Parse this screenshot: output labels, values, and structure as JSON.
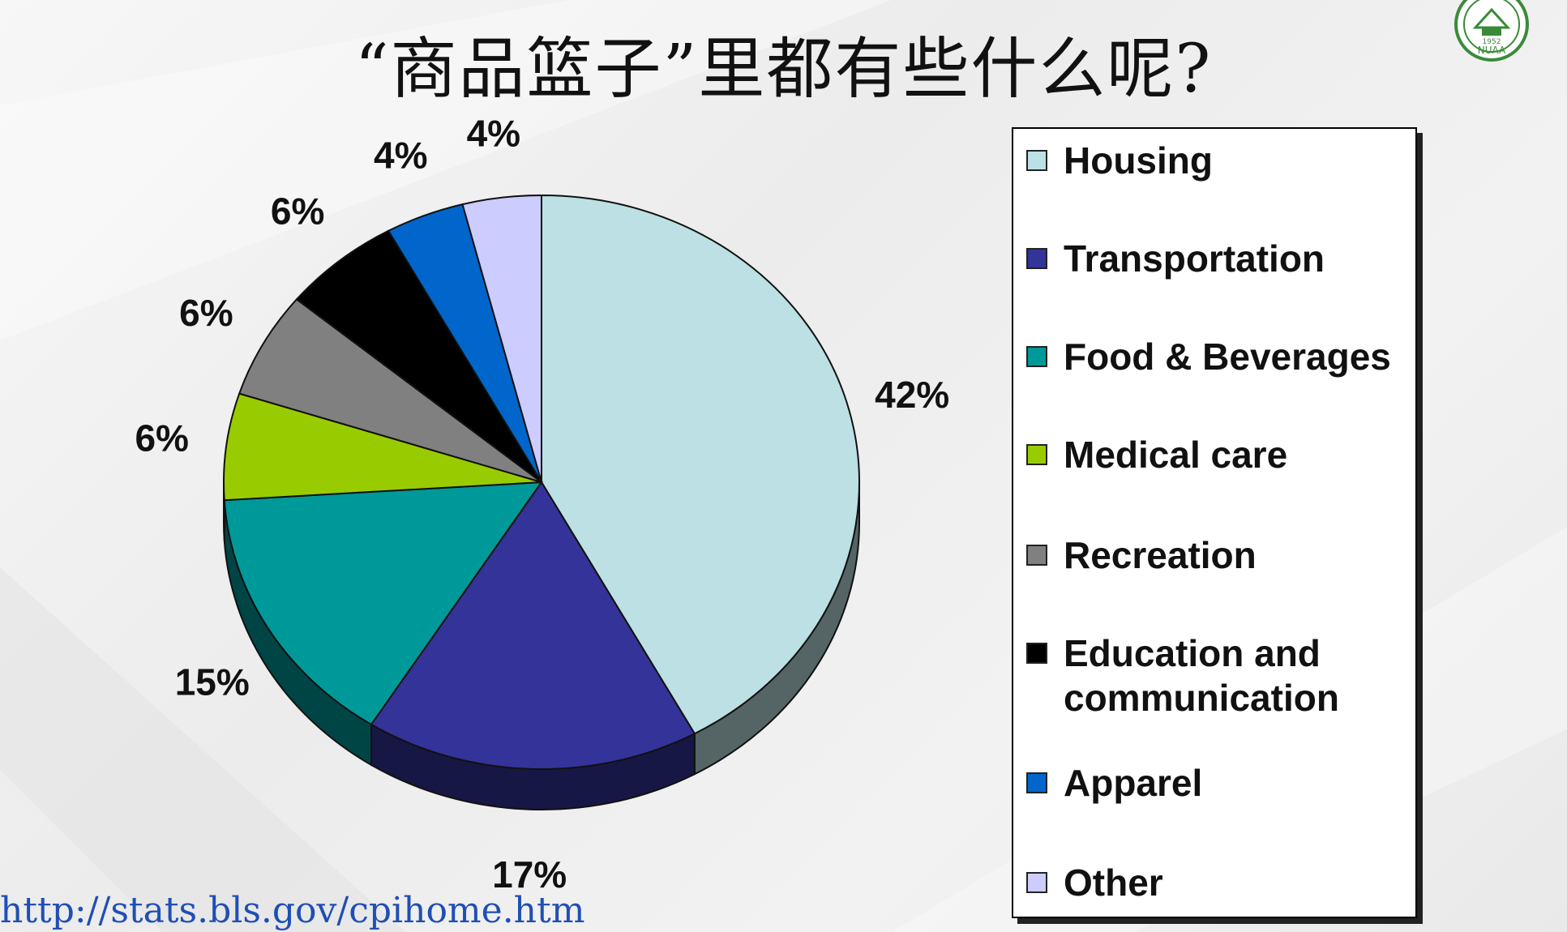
{
  "title": "“商品篮子”里都有些什么呢?",
  "source_url": "http://stats.bls.gov/cpihome.htm",
  "logo": {
    "icon": "university-seal-icon",
    "lettering": "NUAA 1952"
  },
  "chart_data": {
    "type": "pie",
    "style": "3d",
    "legend_position": "right",
    "slices": [
      {
        "label": "Housing",
        "value": 42,
        "value_label": "42%",
        "color": "#bce0e3"
      },
      {
        "label": "Transportation",
        "value": 17,
        "value_label": "17%",
        "color": "#333399"
      },
      {
        "label": "Food & Beverages",
        "value": 15,
        "value_label": "15%",
        "color": "#009999"
      },
      {
        "label": "Medical care",
        "value": 6,
        "value_label": "6%",
        "color": "#99cc00"
      },
      {
        "label": "Recreation",
        "value": 6,
        "value_label": "6%",
        "color": "#808080"
      },
      {
        "label": "Education and communication",
        "value": 6,
        "value_label": "6%",
        "color": "#000000"
      },
      {
        "label": "Apparel",
        "value": 4,
        "value_label": "4%",
        "color": "#0066cc"
      },
      {
        "label": "Other",
        "value": 4,
        "value_label": "4%",
        "color": "#ccccff"
      }
    ]
  }
}
